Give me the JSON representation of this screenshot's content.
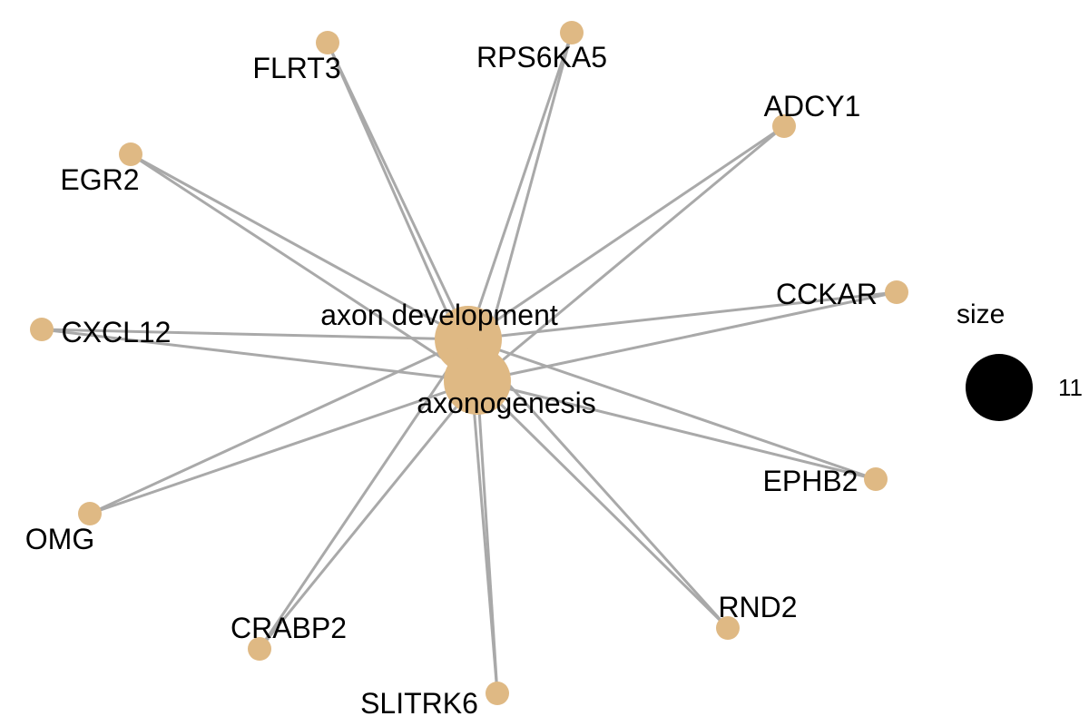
{
  "colors": {
    "node": "#dfb984",
    "edge": "#a9a9a9",
    "legend_marker": "#000000"
  },
  "hubs": [
    {
      "id": "axon_development",
      "label": "axon development"
    },
    {
      "id": "axonogenesis",
      "label": "axonogenesis"
    }
  ],
  "genes": [
    {
      "id": "FLRT3",
      "label": "FLRT3"
    },
    {
      "id": "RPS6KA5",
      "label": "RPS6KA5"
    },
    {
      "id": "ADCY1",
      "label": "ADCY1"
    },
    {
      "id": "EGR2",
      "label": "EGR2"
    },
    {
      "id": "CCKAR",
      "label": "CCKAR"
    },
    {
      "id": "CXCL12",
      "label": "CXCL12"
    },
    {
      "id": "EPHB2",
      "label": "EPHB2"
    },
    {
      "id": "OMG",
      "label": "OMG"
    },
    {
      "id": "RND2",
      "label": "RND2"
    },
    {
      "id": "CRABP2",
      "label": "CRABP2"
    },
    {
      "id": "SLITRK6",
      "label": "SLITRK6"
    }
  ],
  "edges_connect_every_gene_to_both_hubs": true,
  "legend": {
    "title": "size",
    "value": "11"
  }
}
